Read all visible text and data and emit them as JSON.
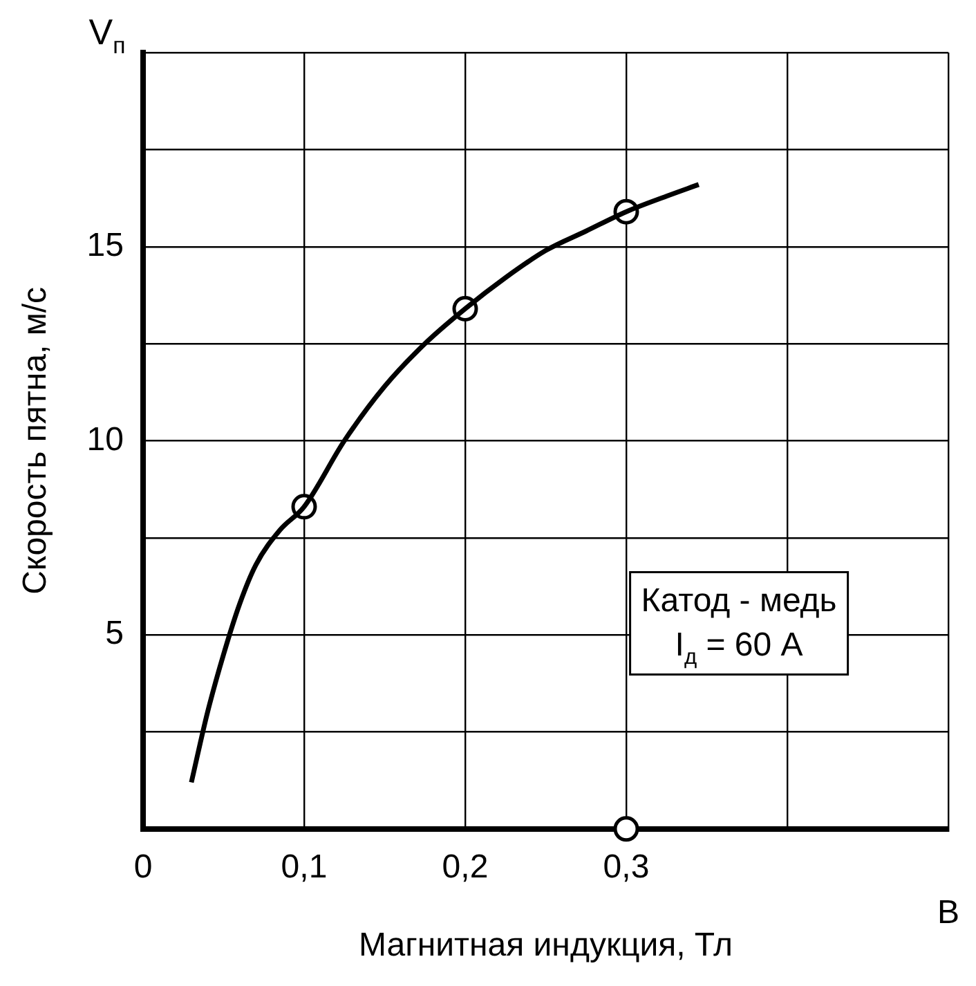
{
  "chart_data": {
    "type": "line",
    "xlabel": "Магнитная индукция, Тл",
    "ylabel": "Скорость пятна, м/с",
    "annotations": [
      "V$_{п}$",
      "B",
      "Катод - медь",
      "I$_{д}$ = 60 А"
    ],
    "xlim": [
      0,
      0.5
    ],
    "xticks": [
      {
        "value": 0,
        "label": "0"
      },
      {
        "value": 0.1,
        "label": "0,1"
      },
      {
        "value": 0.2,
        "label": "0,2"
      },
      {
        "value": 0.3,
        "label": "0,3"
      },
      {
        "value": 0.4,
        "label": null
      },
      {
        "value": 0.5,
        "label": null
      }
    ],
    "ylim": [
      0,
      20
    ],
    "yticks": [
      {
        "value": 0,
        "label": null
      },
      {
        "value": 2.5,
        "label": null
      },
      5,
      {
        "value": 7.5,
        "label": null
      },
      10,
      {
        "value": 12.5,
        "label": null
      },
      15,
      {
        "value": 17.5,
        "label": null
      },
      {
        "value": 20,
        "label": null
      }
    ],
    "grid": true,
    "legend": false,
    "series": [
      {
        "color": "#000000",
        "marker": "none",
        "line_style": "solid",
        "x": [
          0.03,
          0.04,
          0.05,
          0.06,
          0.07,
          0.085,
          0.1,
          0.125,
          0.15,
          0.175,
          0.2,
          0.225,
          0.25,
          0.275,
          0.3,
          0.325,
          0.345
        ],
        "values": [
          1.2,
          3.0,
          4.5,
          5.8,
          6.8,
          7.7,
          8.3,
          10.0,
          11.4,
          12.5,
          13.4,
          14.2,
          14.9,
          15.4,
          15.9,
          16.3,
          16.6
        ]
      },
      {
        "type": "scatter",
        "color": "#000000",
        "marker": "circle",
        "x": [
          0.1,
          0.2,
          0.3,
          0.3
        ],
        "values": [
          8.3,
          13.4,
          15.9,
          0
        ]
      }
    ]
  }
}
